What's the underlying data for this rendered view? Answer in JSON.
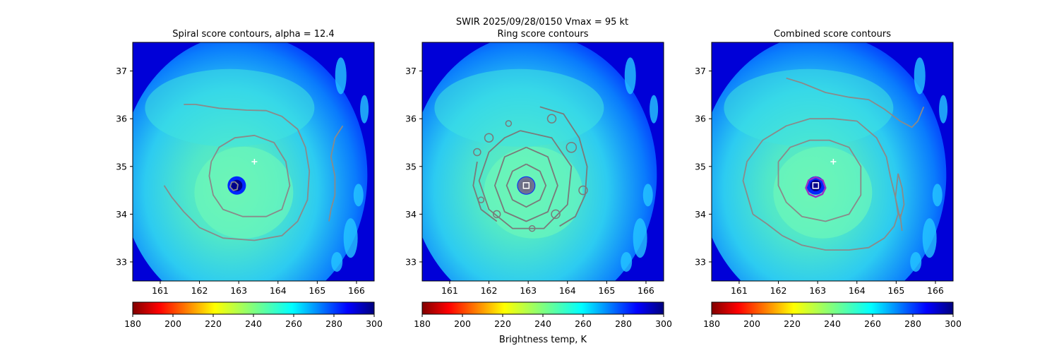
{
  "figure": {
    "suptitle_line1": "SWIR  2025/09/28/0150    Vmax = 95 kt",
    "colorbar_label": "Brightness temp, K"
  },
  "chart_data": [
    {
      "type": "heatmap",
      "title": "Spiral score contours, alpha = 12.4",
      "xlim": [
        160.3,
        166.45
      ],
      "ylim": [
        32.6,
        37.6
      ],
      "xticks": [
        161,
        162,
        163,
        164,
        165,
        166
      ],
      "yticks": [
        33,
        34,
        35,
        36,
        37
      ],
      "xlabel": "",
      "ylabel": "",
      "colorbar": {
        "range": [
          180,
          300
        ],
        "ticks": [
          180,
          200,
          220,
          240,
          260,
          280,
          300
        ],
        "colormap": "jet_r"
      },
      "markers": [
        {
          "kind": "plus",
          "lon": 163.4,
          "lat": 35.1,
          "color": "#ffffff"
        }
      ],
      "contours": [
        {
          "color": "#8a8a8a",
          "points": [
            [
              161.6,
              36.3
            ],
            [
              161.9,
              36.3
            ],
            [
              162.5,
              36.22
            ],
            [
              163.2,
              36.18
            ],
            [
              163.7,
              36.17
            ],
            [
              164.1,
              36.05
            ],
            [
              164.5,
              35.78
            ],
            [
              164.7,
              35.4
            ],
            [
              164.8,
              34.9
            ],
            [
              164.75,
              34.3
            ],
            [
              164.5,
              33.85
            ],
            [
              164.1,
              33.55
            ],
            [
              163.4,
              33.45
            ],
            [
              162.6,
              33.5
            ],
            [
              162.0,
              33.72
            ],
            [
              161.6,
              34.05
            ],
            [
              161.3,
              34.35
            ],
            [
              161.1,
              34.6
            ]
          ]
        },
        {
          "color": "#8a8a8a",
          "points": [
            [
              162.3,
              35.1
            ],
            [
              162.5,
              35.4
            ],
            [
              162.9,
              35.6
            ],
            [
              163.4,
              35.65
            ],
            [
              163.9,
              35.5
            ],
            [
              164.2,
              35.1
            ],
            [
              164.3,
              34.6
            ],
            [
              164.1,
              34.1
            ],
            [
              163.7,
              33.95
            ],
            [
              163.1,
              33.95
            ],
            [
              162.6,
              34.1
            ],
            [
              162.35,
              34.4
            ],
            [
              162.25,
              34.8
            ],
            [
              162.3,
              35.1
            ]
          ]
        },
        {
          "color": "#8a8a8a",
          "points": [
            [
              162.9,
              34.68
            ],
            [
              162.98,
              34.62
            ],
            [
              162.96,
              34.52
            ],
            [
              162.86,
              34.5
            ],
            [
              162.78,
              34.57
            ],
            [
              162.82,
              34.67
            ],
            [
              162.9,
              34.68
            ]
          ]
        },
        {
          "color": "#8a8a8a",
          "points": [
            [
              165.65,
              35.85
            ],
            [
              165.45,
              35.6
            ],
            [
              165.35,
              35.2
            ],
            [
              165.45,
              34.8
            ],
            [
              165.45,
              34.4
            ],
            [
              165.35,
              34.1
            ],
            [
              165.3,
              33.85
            ]
          ]
        }
      ]
    },
    {
      "type": "heatmap",
      "title": "Ring score contours",
      "xlim": [
        160.3,
        166.45
      ],
      "ylim": [
        32.6,
        37.6
      ],
      "xticks": [
        161,
        162,
        163,
        164,
        165,
        166
      ],
      "yticks": [
        33,
        34,
        35,
        36,
        37
      ],
      "xlabel": "",
      "ylabel": "",
      "colorbar": {
        "range": [
          180,
          300
        ],
        "ticks": [
          180,
          200,
          220,
          240,
          260,
          280,
          300
        ],
        "colormap": "jet_r"
      },
      "markers": [
        {
          "kind": "square",
          "lon": 162.95,
          "lat": 34.6,
          "color": "#ffffff"
        }
      ],
      "contours": [
        {
          "color": "#7a7a7a",
          "points": [
            [
              162.95,
              35.05
            ],
            [
              163.3,
              34.9
            ],
            [
              163.45,
              34.6
            ],
            [
              163.3,
              34.3
            ],
            [
              162.95,
              34.15
            ],
            [
              162.6,
              34.3
            ],
            [
              162.45,
              34.6
            ],
            [
              162.6,
              34.9
            ],
            [
              162.95,
              35.05
            ]
          ]
        },
        {
          "color": "#7a7a7a",
          "points": [
            [
              162.95,
              35.4
            ],
            [
              163.5,
              35.2
            ],
            [
              163.75,
              34.6
            ],
            [
              163.5,
              34.05
            ],
            [
              162.95,
              33.85
            ],
            [
              162.4,
              34.05
            ],
            [
              162.15,
              34.6
            ],
            [
              162.4,
              35.2
            ],
            [
              162.95,
              35.4
            ]
          ]
        },
        {
          "color": "#7a7a7a",
          "points": [
            [
              162.8,
              35.75
            ],
            [
              163.6,
              35.6
            ],
            [
              164.1,
              35.0
            ],
            [
              164.0,
              34.2
            ],
            [
              163.4,
              33.7
            ],
            [
              162.6,
              33.7
            ],
            [
              162.0,
              34.1
            ],
            [
              161.75,
              34.7
            ],
            [
              162.0,
              35.3
            ],
            [
              162.4,
              35.6
            ],
            [
              162.8,
              35.75
            ]
          ]
        },
        {
          "color": "#7a7a7a",
          "points": [
            [
              163.3,
              36.25
            ],
            [
              163.9,
              36.1
            ],
            [
              164.3,
              35.6
            ],
            [
              164.5,
              35.0
            ],
            [
              164.45,
              34.4
            ],
            [
              164.2,
              33.95
            ],
            [
              163.8,
              33.75
            ]
          ]
        },
        {
          "color": "#7a7a7a",
          "points": [
            [
              161.7,
              35.1
            ],
            [
              161.6,
              34.6
            ],
            [
              161.8,
              34.1
            ],
            [
              162.2,
              33.85
            ]
          ]
        }
      ]
    },
    {
      "type": "heatmap",
      "title": "Combined score contours",
      "xlim": [
        160.3,
        166.45
      ],
      "ylim": [
        32.6,
        37.6
      ],
      "xticks": [
        161,
        162,
        163,
        164,
        165,
        166
      ],
      "yticks": [
        33,
        34,
        35,
        36,
        37
      ],
      "xlabel": "",
      "ylabel": "",
      "colorbar": {
        "range": [
          180,
          300
        ],
        "ticks": [
          180,
          200,
          220,
          240,
          260,
          280,
          300
        ],
        "colormap": "jet_r"
      },
      "markers": [
        {
          "kind": "plus",
          "lon": 163.4,
          "lat": 35.1,
          "color": "#ffffff"
        },
        {
          "kind": "square",
          "lon": 162.95,
          "lat": 34.6,
          "color": "#ffffff"
        }
      ],
      "contours": [
        {
          "color": "#8a8a8a",
          "points": [
            [
              162.2,
              36.85
            ],
            [
              162.6,
              36.75
            ],
            [
              163.2,
              36.55
            ],
            [
              163.8,
              36.45
            ],
            [
              164.3,
              36.4
            ],
            [
              164.7,
              36.2
            ],
            [
              165.1,
              35.95
            ],
            [
              165.4,
              35.82
            ],
            [
              165.55,
              35.95
            ],
            [
              165.7,
              36.25
            ]
          ]
        },
        {
          "color": "#8a8a8a",
          "points": [
            [
              161.35,
              34.0
            ],
            [
              161.7,
              33.8
            ],
            [
              162.1,
              33.55
            ],
            [
              162.6,
              33.35
            ],
            [
              163.2,
              33.25
            ],
            [
              163.8,
              33.25
            ],
            [
              164.3,
              33.3
            ],
            [
              164.7,
              33.5
            ],
            [
              164.95,
              33.75
            ],
            [
              165.05,
              34.0
            ],
            [
              164.98,
              34.35
            ],
            [
              164.85,
              34.8
            ],
            [
              164.75,
              35.2
            ],
            [
              164.5,
              35.6
            ],
            [
              164.0,
              35.95
            ],
            [
              163.4,
              36.0
            ],
            [
              162.8,
              36.0
            ],
            [
              162.2,
              35.85
            ],
            [
              161.6,
              35.55
            ],
            [
              161.2,
              35.1
            ],
            [
              161.1,
              34.7
            ],
            [
              161.35,
              34.0
            ]
          ]
        },
        {
          "color": "#8a8a8a",
          "points": [
            [
              162.0,
              35.1
            ],
            [
              162.3,
              35.4
            ],
            [
              162.8,
              35.55
            ],
            [
              163.3,
              35.55
            ],
            [
              163.8,
              35.4
            ],
            [
              164.1,
              35.0
            ],
            [
              164.1,
              34.4
            ],
            [
              163.8,
              34.0
            ],
            [
              163.2,
              33.85
            ],
            [
              162.6,
              33.95
            ],
            [
              162.2,
              34.25
            ],
            [
              162.0,
              34.6
            ],
            [
              162.0,
              35.1
            ]
          ]
        },
        {
          "color": "#8a8a8a",
          "points": [
            [
              165.05,
              34.85
            ],
            [
              165.15,
              34.55
            ],
            [
              165.2,
              34.2
            ],
            [
              165.1,
              33.9
            ],
            [
              164.98,
              34.35
            ],
            [
              165.05,
              34.85
            ]
          ]
        },
        {
          "color": "#8a8a8a",
          "points": [
            [
              165.1,
              34.0
            ],
            [
              165.15,
              33.65
            ]
          ]
        },
        {
          "color": "#9b2fc4",
          "points": [
            [
              162.95,
              34.78
            ],
            [
              163.13,
              34.71
            ],
            [
              163.2,
              34.55
            ],
            [
              163.12,
              34.42
            ],
            [
              162.95,
              34.36
            ],
            [
              162.78,
              34.42
            ],
            [
              162.7,
              34.55
            ],
            [
              162.77,
              34.71
            ],
            [
              162.95,
              34.78
            ]
          ]
        }
      ]
    }
  ]
}
